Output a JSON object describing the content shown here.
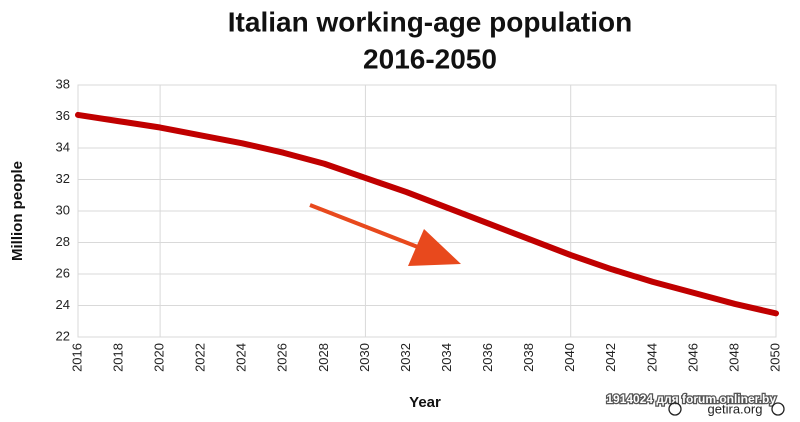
{
  "chart_data": {
    "type": "line",
    "title": [
      "Italian working-age population",
      "2016-2050"
    ],
    "x_label": "Year",
    "y_label": "Million people",
    "x": [
      2016,
      2018,
      2020,
      2022,
      2024,
      2026,
      2028,
      2030,
      2032,
      2034,
      2036,
      2038,
      2040,
      2042,
      2044,
      2046,
      2048,
      2050
    ],
    "series": [
      {
        "name": "Working-age population",
        "color": "#c00000",
        "values": [
          36.1,
          35.7,
          35.3,
          34.8,
          34.3,
          33.7,
          33.0,
          32.1,
          31.2,
          30.2,
          29.2,
          28.2,
          27.2,
          26.3,
          25.5,
          24.8,
          24.1,
          23.5
        ]
      }
    ],
    "xlim": [
      2016,
      2050
    ],
    "xticks": [
      2016,
      2018,
      2020,
      2022,
      2024,
      2026,
      2028,
      2030,
      2032,
      2034,
      2036,
      2038,
      2040,
      2042,
      2044,
      2046,
      2048,
      2050
    ],
    "xgrid_lines": [
      2020,
      2030,
      2040,
      2050
    ],
    "ylim": [
      22,
      38
    ],
    "yticks": [
      22,
      24,
      26,
      28,
      30,
      32,
      34,
      36,
      38
    ],
    "grid": true,
    "source": "getira.org",
    "watermark": "1914024 для forum.onliner.by"
  }
}
